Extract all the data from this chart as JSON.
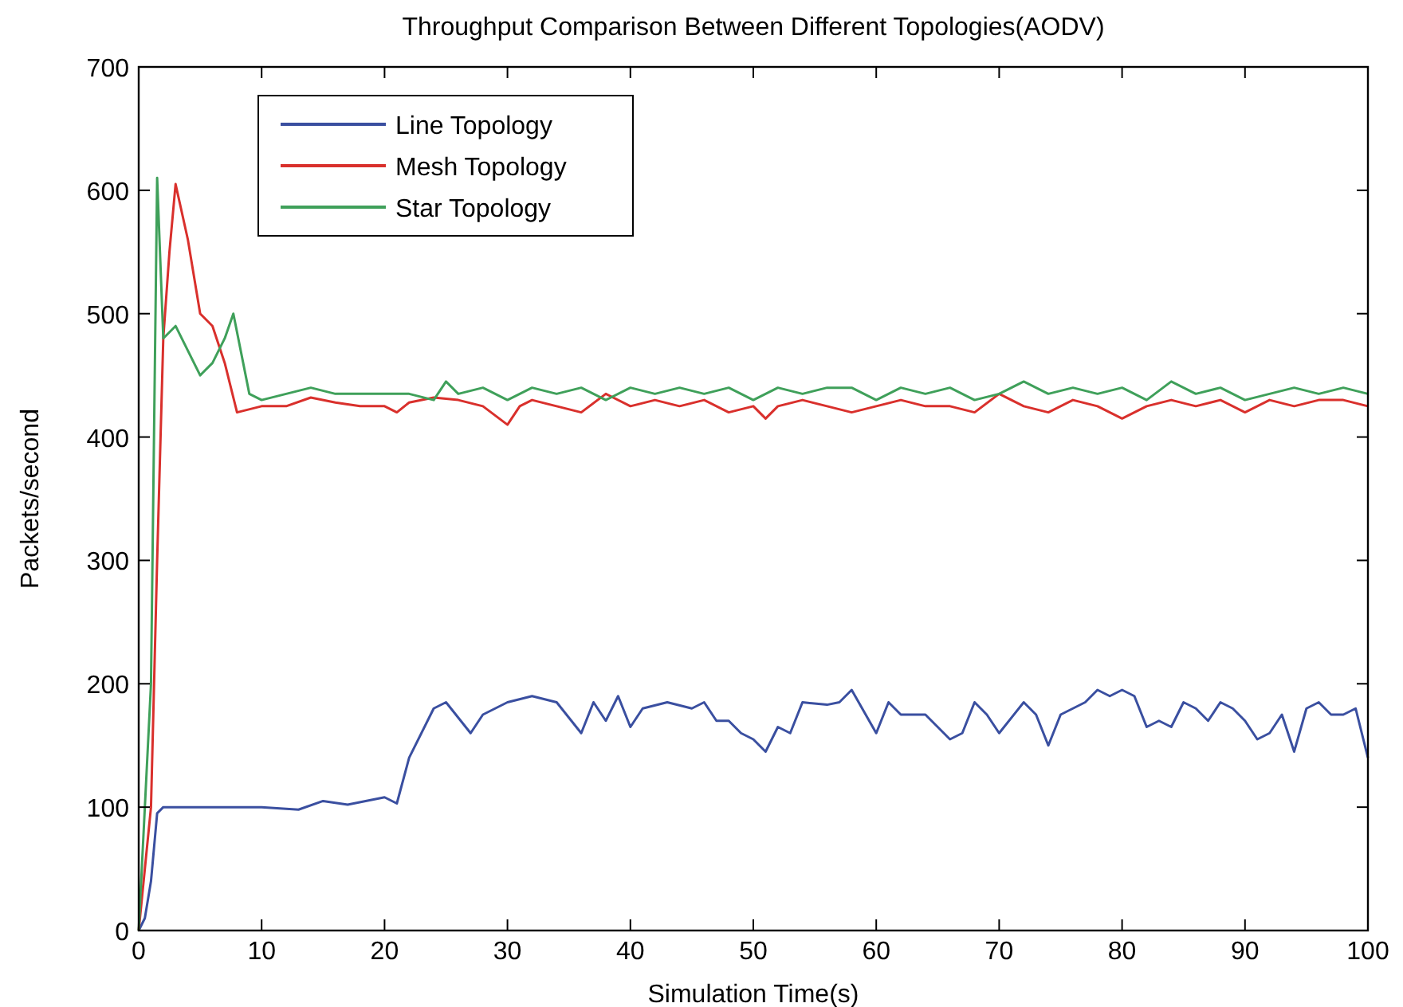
{
  "chart_data": {
    "type": "line",
    "title": "Throughput Comparison Between Different Topologies(AODV)",
    "xlabel": "Simulation Time(s)",
    "ylabel": "Packets/second",
    "xlim": [
      0,
      100
    ],
    "ylim": [
      0,
      700
    ],
    "xticks": [
      0,
      10,
      20,
      30,
      40,
      50,
      60,
      70,
      80,
      90,
      100
    ],
    "yticks": [
      0,
      100,
      200,
      300,
      400,
      500,
      600,
      700
    ],
    "grid": false,
    "legend": "top left",
    "series": [
      {
        "name": "Line Topology",
        "color": "#3a4fa0",
        "x": [
          0,
          0.5,
          1,
          1.5,
          2,
          5,
          10,
          13,
          15,
          17,
          20,
          21,
          22,
          24,
          25,
          27,
          28,
          30,
          32,
          34,
          36,
          37,
          38,
          39,
          40,
          41,
          43,
          45,
          46,
          47,
          48,
          49,
          50,
          51,
          52,
          53,
          54,
          56,
          57,
          58,
          60,
          61,
          62,
          64,
          65,
          66,
          67,
          68,
          69,
          70,
          72,
          73,
          74,
          75,
          76,
          77,
          78,
          79,
          80,
          81,
          82,
          83,
          84,
          85,
          86,
          87,
          88,
          89,
          90,
          91,
          92,
          93,
          94,
          95,
          96,
          97,
          98,
          99,
          100
        ],
        "values": [
          0,
          10,
          40,
          95,
          100,
          100,
          100,
          98,
          105,
          102,
          108,
          103,
          140,
          180,
          185,
          160,
          175,
          185,
          190,
          185,
          160,
          185,
          170,
          190,
          165,
          180,
          185,
          180,
          185,
          170,
          170,
          160,
          155,
          145,
          165,
          160,
          185,
          183,
          185,
          195,
          160,
          185,
          175,
          175,
          165,
          155,
          160,
          185,
          175,
          160,
          185,
          175,
          150,
          175,
          180,
          185,
          195,
          190,
          195,
          190,
          165,
          170,
          165,
          185,
          180,
          170,
          185,
          180,
          170,
          155,
          160,
          175,
          145,
          180,
          185,
          175,
          175,
          180,
          140
        ]
      },
      {
        "name": "Mesh Topology",
        "color": "#d9302c",
        "x": [
          0,
          1,
          1.5,
          2,
          2.5,
          3,
          4,
          5,
          6,
          7,
          8,
          10,
          12,
          14,
          16,
          18,
          20,
          21,
          22,
          24,
          26,
          28,
          30,
          31,
          32,
          34,
          36,
          38,
          40,
          42,
          44,
          46,
          48,
          50,
          51,
          52,
          54,
          56,
          58,
          60,
          62,
          64,
          66,
          68,
          70,
          72,
          74,
          76,
          78,
          80,
          82,
          84,
          86,
          88,
          90,
          92,
          94,
          96,
          98,
          100
        ],
        "values": [
          0,
          100,
          300,
          480,
          550,
          605,
          560,
          500,
          490,
          460,
          420,
          425,
          425,
          432,
          428,
          425,
          425,
          420,
          428,
          432,
          430,
          425,
          410,
          425,
          430,
          425,
          420,
          435,
          425,
          430,
          425,
          430,
          420,
          425,
          415,
          425,
          430,
          425,
          420,
          425,
          430,
          425,
          425,
          420,
          435,
          425,
          420,
          430,
          425,
          415,
          425,
          430,
          425,
          430,
          420,
          430,
          425,
          430,
          430,
          425
        ]
      },
      {
        "name": "Star Topology",
        "color": "#3fa05a",
        "x": [
          0,
          1,
          1.5,
          2,
          3,
          4,
          5,
          6,
          7,
          7.7,
          8.5,
          9,
          10,
          12,
          14,
          16,
          18,
          20,
          22,
          24,
          25,
          26,
          28,
          30,
          32,
          34,
          36,
          38,
          40,
          42,
          44,
          46,
          48,
          50,
          52,
          54,
          56,
          58,
          60,
          62,
          64,
          66,
          68,
          70,
          72,
          74,
          76,
          78,
          80,
          82,
          84,
          86,
          88,
          90,
          92,
          94,
          96,
          98,
          100
        ],
        "values": [
          0,
          200,
          610,
          480,
          490,
          470,
          450,
          460,
          480,
          500,
          460,
          435,
          430,
          435,
          440,
          435,
          435,
          435,
          435,
          430,
          445,
          435,
          440,
          430,
          440,
          435,
          440,
          430,
          440,
          435,
          440,
          435,
          440,
          430,
          440,
          435,
          440,
          440,
          430,
          440,
          435,
          440,
          430,
          435,
          445,
          435,
          440,
          435,
          440,
          430,
          445,
          435,
          440,
          430,
          435,
          440,
          435,
          440,
          435
        ]
      }
    ]
  }
}
